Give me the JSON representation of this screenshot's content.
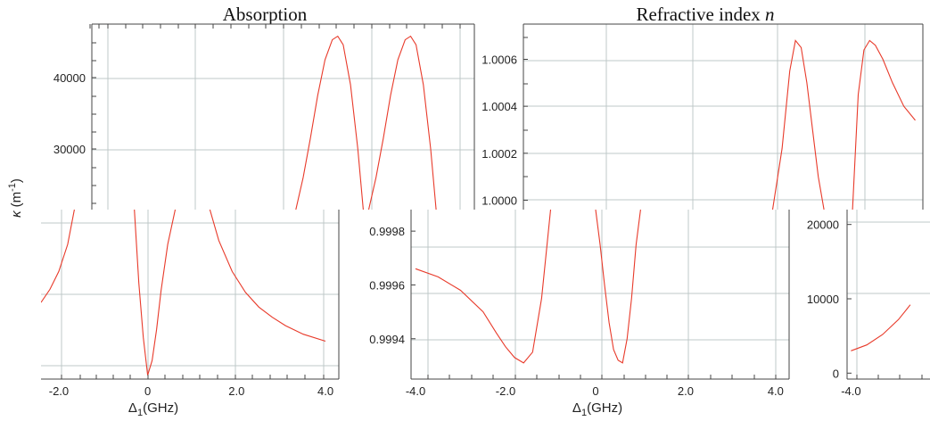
{
  "titles": {
    "absorption": "Absorption",
    "refractive_prefix": "Refractive index ",
    "refractive_var": "n"
  },
  "labels": {
    "ylabel_symbol": "κ",
    "ylabel_unit": "(m",
    "ylabel_exp": "-1",
    "ylabel_close": ")",
    "xlabel_delta": "Δ",
    "xlabel_sub": "1",
    "xlabel_unit": "(GHz)"
  },
  "colors": {
    "curve": "#e83a2a",
    "grid": "#bfc9c9"
  },
  "chart_data": [
    {
      "type": "line",
      "name": "absorption-top",
      "title": "Absorption",
      "ylabel": "κ (m⁻¹)",
      "yticks": [
        "40000",
        "30000"
      ],
      "ytick_values": [
        40000,
        30000
      ],
      "ylim": [
        21500,
        47500
      ],
      "xlim": [
        -4.7,
        5.8
      ],
      "grid": true,
      "series": [
        {
          "x": [
            0.9,
            1.1,
            1.3,
            1.5,
            1.7,
            1.9,
            2.05,
            2.2,
            2.4,
            2.6,
            2.75
          ],
          "y": [
            21500,
            26000,
            31500,
            37500,
            42500,
            45300,
            45800,
            44600,
            39000,
            30000,
            21500
          ]
        },
        {
          "x": [
            2.9,
            3.1,
            3.3,
            3.5,
            3.7,
            3.9,
            4.05,
            4.2,
            4.4,
            4.6,
            4.75
          ],
          "y": [
            21500,
            26000,
            31500,
            37500,
            42500,
            45300,
            45800,
            44600,
            39000,
            30000,
            21500
          ]
        }
      ]
    },
    {
      "type": "line",
      "name": "absorption-bottom",
      "xlabel": "Δ1(GHz)",
      "xticks": [
        "-2.0",
        "0",
        "2.0",
        "4.0"
      ],
      "xtick_values": [
        -2,
        0,
        2,
        4
      ],
      "xlim": [
        -2.4,
        4.3
      ],
      "ylim": [
        -400,
        21500
      ],
      "grid": true,
      "series": [
        {
          "x": [
            -2.4,
            -2.2,
            -2.0,
            -1.8,
            -1.65
          ],
          "y": [
            9500,
            11200,
            13500,
            17000,
            21500
          ]
        },
        {
          "x": [
            -0.3,
            -0.2,
            -0.1,
            0.0,
            0.1,
            0.2,
            0.3,
            0.45,
            0.62
          ],
          "y": [
            21500,
            12000,
            5000,
            100,
            2000,
            6000,
            11000,
            17000,
            21500
          ]
        },
        {
          "x": [
            1.4,
            1.6,
            1.9,
            2.2,
            2.5,
            2.8,
            3.1,
            3.5,
            4.0
          ],
          "y": [
            21500,
            17500,
            13500,
            10800,
            8900,
            7600,
            6500,
            5400,
            4500
          ]
        }
      ]
    },
    {
      "type": "line",
      "name": "refractive-top",
      "title": "Refractive index n",
      "yticks": [
        "1.0006",
        "1.0004",
        "1.0002",
        "1.0000"
      ],
      "ytick_values": [
        1.0006,
        1.0004,
        1.0002,
        1.0
      ],
      "ylim": [
        0.99996,
        1.00075
      ],
      "xlim": [
        -4.7,
        5.8
      ],
      "grid": true,
      "series": [
        {
          "x": [
            1.85,
            2.1,
            2.3,
            2.45,
            2.6,
            2.75,
            2.9,
            3.05,
            3.2
          ],
          "y": [
            0.99996,
            1.00022,
            1.00055,
            1.00068,
            1.00065,
            1.0005,
            1.0003,
            1.0001,
            0.99996
          ]
        },
        {
          "x": [
            3.95,
            4.1,
            4.25,
            4.4,
            4.55,
            4.75,
            5.0,
            5.3,
            5.6
          ],
          "y": [
            0.99996,
            1.00045,
            1.00064,
            1.00068,
            1.00066,
            1.0006,
            1.0005,
            1.0004,
            1.00034
          ]
        }
      ]
    },
    {
      "type": "line",
      "name": "refractive-bottom",
      "xlabel": "Δ1(GHz)",
      "xticks": [
        "-4.0",
        "-2.0",
        "0",
        "2.0",
        "4.0"
      ],
      "xtick_values": [
        -4,
        -2,
        0,
        2,
        4
      ],
      "yticks": [
        "0.9998",
        "0.9996",
        "0.9994"
      ],
      "ytick_values": [
        0.9998,
        0.9996,
        0.9994
      ],
      "xlim": [
        -4.1,
        4.3
      ],
      "ylim": [
        0.99925,
        0.99988
      ],
      "grid": true,
      "series": [
        {
          "x": [
            -4.0,
            -3.5,
            -3.0,
            -2.5,
            -2.2,
            -2.0,
            -1.8,
            -1.6,
            -1.4,
            -1.2,
            -1.0
          ],
          "y": [
            0.99966,
            0.99963,
            0.99958,
            0.9995,
            0.99942,
            0.99937,
            0.99933,
            0.99931,
            0.99935,
            0.99955,
            0.99988
          ]
        },
        {
          "x": [
            0.0,
            0.1,
            0.2,
            0.3,
            0.4,
            0.5,
            0.6,
            0.7,
            0.8,
            0.9,
            1.0
          ],
          "y": [
            0.99988,
            0.99975,
            0.9996,
            0.99946,
            0.99936,
            0.99932,
            0.99931,
            0.9994,
            0.99955,
            0.99975,
            0.99988
          ]
        }
      ]
    },
    {
      "type": "line",
      "name": "third-panel-fragment",
      "xticks": [
        "-4.0"
      ],
      "xtick_values": [
        -4
      ],
      "yticks": [
        "20000",
        "10000",
        "0"
      ],
      "ytick_values": [
        20000,
        10000,
        0
      ],
      "xlim": [
        -4.1,
        -2.0
      ],
      "ylim": [
        -800,
        22000
      ],
      "grid": true,
      "series": [
        {
          "x": [
            -4.0,
            -3.6,
            -3.2,
            -2.8,
            -2.5
          ],
          "y": [
            3000,
            3800,
            5200,
            7200,
            9200
          ]
        }
      ]
    }
  ]
}
